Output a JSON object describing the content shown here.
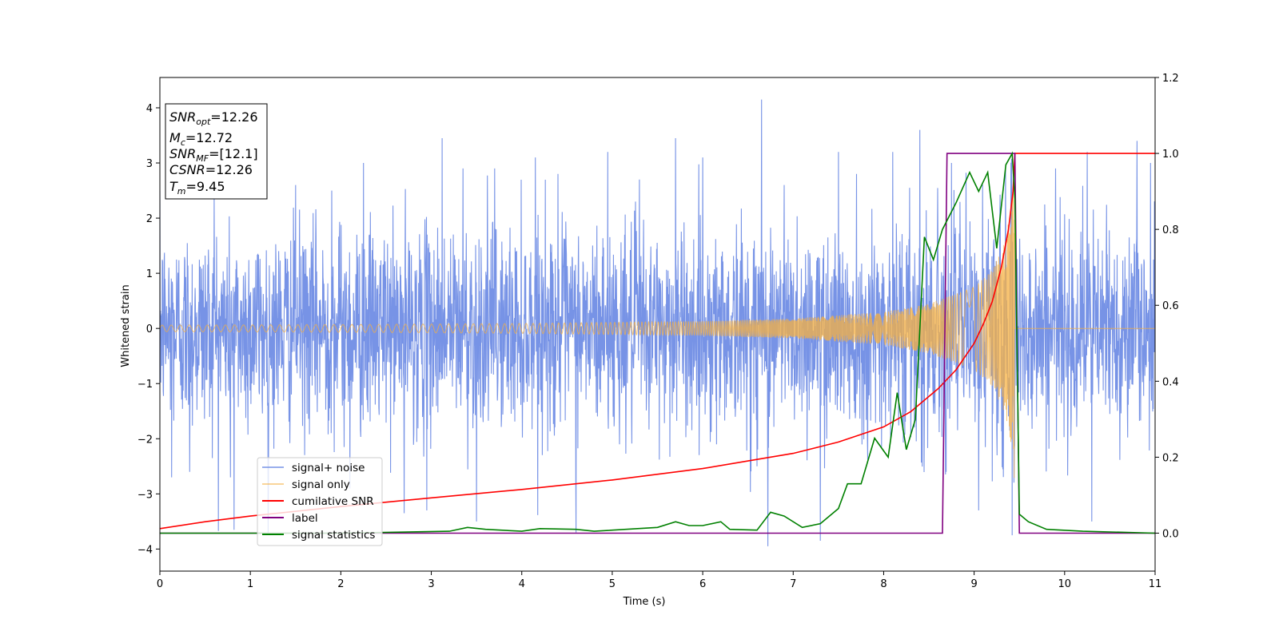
{
  "chart_data": {
    "type": "line",
    "xlabel": "Time (s)",
    "ylabel": "Whitened strain",
    "xlim": [
      0,
      11
    ],
    "ylim_left": [
      -4.4,
      4.55
    ],
    "ylim_right": [
      -0.1,
      1.2
    ],
    "x_ticks": [
      0,
      1,
      2,
      3,
      4,
      5,
      6,
      7,
      8,
      9,
      10,
      11
    ],
    "y_ticks_left": [
      -4,
      -3,
      -2,
      -1,
      0,
      1,
      2,
      3,
      4
    ],
    "y_ticks_right": [
      0.0,
      0.2,
      0.4,
      0.6,
      0.8,
      1.0,
      1.2
    ],
    "legend_position": "lower-left",
    "annotation": {
      "snr_opt": {
        "base": "SNR",
        "sub": "opt",
        "value": "=12.26"
      },
      "mc": {
        "base": "M",
        "sub": "c",
        "value": "=12.72"
      },
      "snr_mf": {
        "base": "SNR",
        "sub": "MF",
        "value": "=[12.1]"
      },
      "csnr": {
        "base": "CSNR",
        "sub": "",
        "value": "=12.26"
      },
      "tm": {
        "base": "T",
        "sub": "m",
        "value": "=9.45"
      }
    },
    "series": [
      {
        "name": "signal+ noise",
        "color": "#7793e6",
        "axis": "left",
        "description_values": {
          "noise_sigma": 0.9,
          "typical_min": -2.4,
          "typical_max": 2.4,
          "x_start": 0,
          "x_end": 11
        },
        "spikes": [
          [
            0.13,
            -2.7
          ],
          [
            0.33,
            -2.6
          ],
          [
            0.78,
            -2.7
          ],
          [
            0.82,
            -3.65
          ],
          [
            0.6,
            2.4
          ],
          [
            1.2,
            -2.9
          ],
          [
            1.5,
            2.6
          ],
          [
            1.9,
            2.5
          ],
          [
            2.1,
            -2.9
          ],
          [
            2.25,
            3.0
          ],
          [
            2.7,
            -3.35
          ],
          [
            2.95,
            -3.3
          ],
          [
            3.12,
            3.45
          ],
          [
            3.35,
            2.9
          ],
          [
            3.5,
            -3.5
          ],
          [
            3.7,
            2.9
          ],
          [
            4.15,
            3.1
          ],
          [
            4.4,
            2.8
          ],
          [
            4.6,
            -3.7
          ],
          [
            4.95,
            3.2
          ],
          [
            5.3,
            2.7
          ],
          [
            5.7,
            3.45
          ],
          [
            6.0,
            3.1
          ],
          [
            6.6,
            -2.5
          ],
          [
            6.65,
            4.15
          ],
          [
            6.72,
            -3.95
          ],
          [
            6.9,
            2.6
          ],
          [
            7.3,
            -3.85
          ],
          [
            7.5,
            3.2
          ],
          [
            7.7,
            2.8
          ],
          [
            8.1,
            3.2
          ],
          [
            8.4,
            3.6
          ],
          [
            8.75,
            3.0
          ],
          [
            9.05,
            -3.3
          ],
          [
            9.42,
            -3.75
          ],
          [
            9.9,
            2.9
          ],
          [
            10.25,
            3.2
          ],
          [
            10.3,
            -3.5
          ],
          [
            10.8,
            3.4
          ],
          [
            10.95,
            3.0
          ]
        ]
      },
      {
        "name": "signal only",
        "color": "#f5b041",
        "axis": "left",
        "x_end": 9.45,
        "envelope": [
          [
            0,
            0.06
          ],
          [
            2,
            0.07
          ],
          [
            4,
            0.09
          ],
          [
            6,
            0.13
          ],
          [
            7,
            0.18
          ],
          [
            8,
            0.3
          ],
          [
            8.5,
            0.45
          ],
          [
            9,
            0.75
          ],
          [
            9.2,
            1.05
          ],
          [
            9.35,
            1.6
          ],
          [
            9.42,
            2.4
          ],
          [
            9.45,
            2.8
          ]
        ]
      },
      {
        "name": "cumilative SNR",
        "color": "#ff0000",
        "axis": "right",
        "points": [
          [
            0,
            0.012
          ],
          [
            0.5,
            0.03
          ],
          [
            1,
            0.045
          ],
          [
            2,
            0.07
          ],
          [
            3,
            0.093
          ],
          [
            4,
            0.115
          ],
          [
            5,
            0.14
          ],
          [
            6,
            0.17
          ],
          [
            6.5,
            0.19
          ],
          [
            7,
            0.21
          ],
          [
            7.5,
            0.24
          ],
          [
            8,
            0.28
          ],
          [
            8.3,
            0.32
          ],
          [
            8.6,
            0.38
          ],
          [
            8.8,
            0.43
          ],
          [
            9,
            0.5
          ],
          [
            9.1,
            0.55
          ],
          [
            9.2,
            0.61
          ],
          [
            9.3,
            0.7
          ],
          [
            9.38,
            0.8
          ],
          [
            9.43,
            0.9
          ],
          [
            9.45,
            1.0
          ],
          [
            11,
            1.0
          ]
        ]
      },
      {
        "name": "label",
        "color": "#800080",
        "axis": "right",
        "points": [
          [
            0,
            0
          ],
          [
            8.65,
            0
          ],
          [
            8.7,
            1
          ],
          [
            9.45,
            1
          ],
          [
            9.5,
            0
          ],
          [
            11,
            0
          ]
        ]
      },
      {
        "name": "signal statistics",
        "color": "#008000",
        "axis": "right",
        "points": [
          [
            0,
            0
          ],
          [
            1,
            0
          ],
          [
            2,
            0
          ],
          [
            3.2,
            0.005
          ],
          [
            3.4,
            0.015
          ],
          [
            3.6,
            0.01
          ],
          [
            4,
            0.005
          ],
          [
            4.2,
            0.012
          ],
          [
            4.6,
            0.01
          ],
          [
            4.8,
            0.005
          ],
          [
            5.5,
            0.015
          ],
          [
            5.7,
            0.03
          ],
          [
            5.85,
            0.02
          ],
          [
            6.0,
            0.02
          ],
          [
            6.2,
            0.03
          ],
          [
            6.3,
            0.01
          ],
          [
            6.6,
            0.008
          ],
          [
            6.75,
            0.055
          ],
          [
            6.9,
            0.045
          ],
          [
            7.1,
            0.015
          ],
          [
            7.3,
            0.025
          ],
          [
            7.5,
            0.065
          ],
          [
            7.6,
            0.13
          ],
          [
            7.75,
            0.13
          ],
          [
            7.9,
            0.25
          ],
          [
            8.05,
            0.2
          ],
          [
            8.15,
            0.37
          ],
          [
            8.25,
            0.22
          ],
          [
            8.35,
            0.3
          ],
          [
            8.45,
            0.78
          ],
          [
            8.55,
            0.72
          ],
          [
            8.65,
            0.8
          ],
          [
            8.8,
            0.87
          ],
          [
            8.95,
            0.95
          ],
          [
            9.05,
            0.9
          ],
          [
            9.15,
            0.95
          ],
          [
            9.25,
            0.75
          ],
          [
            9.35,
            0.97
          ],
          [
            9.42,
            1.0
          ],
          [
            9.45,
            0.88
          ],
          [
            9.5,
            0.05
          ],
          [
            9.6,
            0.03
          ],
          [
            9.8,
            0.01
          ],
          [
            10.2,
            0.005
          ],
          [
            11,
            0
          ]
        ]
      }
    ]
  }
}
